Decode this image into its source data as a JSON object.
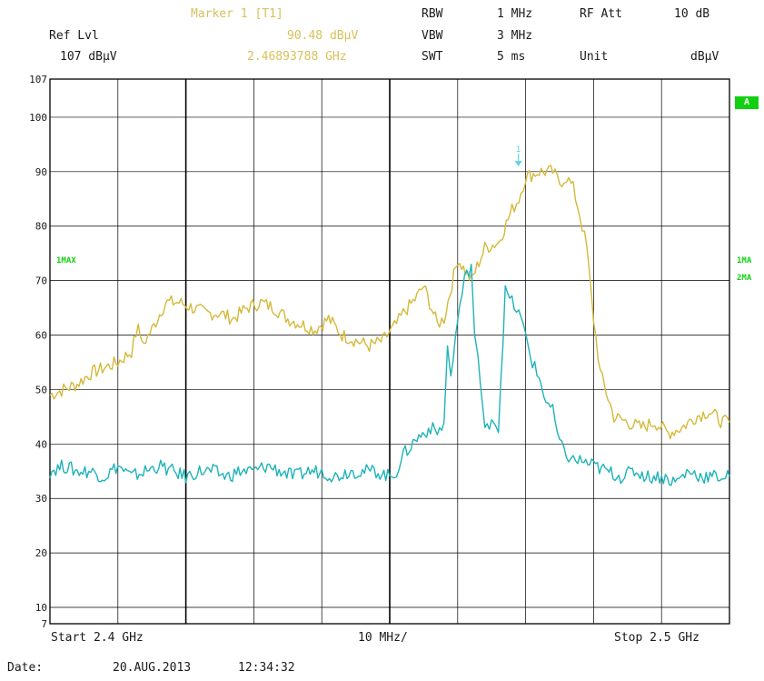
{
  "header": {
    "marker_title": "Marker 1 [T1]",
    "marker_level": "90.48 dBμV",
    "marker_freq": "2.46893788 GHz",
    "ref_label": "Ref Lvl",
    "ref_value": "107 dBμV",
    "rbw_label": "RBW",
    "rbw_value": "1 MHz",
    "vbw_label": "VBW",
    "vbw_value": "3 MHz",
    "swt_label": "SWT",
    "swt_value": "5 ms",
    "rfatt_label": "RF Att",
    "rfatt_value": "10 dB",
    "unit_label": "Unit",
    "unit_value": "dBμV"
  },
  "footer": {
    "start": "Start 2.4 GHz",
    "div": "10 MHz/",
    "stop": "Stop 2.5 GHz",
    "date_label": "Date:",
    "date_value": "20.AUG.2013",
    "time_value": "12:34:32"
  },
  "badges": {
    "trace_a": "A",
    "left_1max": "1MAX",
    "right_1ma": "1MA",
    "right_2ma": "2MA"
  },
  "colors": {
    "trace1": "#d4b93a",
    "trace2": "#1eb3b8",
    "grid": "#000000",
    "badge": "#11d011",
    "marker": "#5fd3e8"
  },
  "chart_data": {
    "type": "line",
    "xlabel": "",
    "ylabel": "",
    "xlim": [
      2.4,
      2.5
    ],
    "ylim": [
      7,
      107
    ],
    "yticks": [
      107,
      100,
      90,
      80,
      70,
      60,
      50,
      40,
      30,
      20,
      10,
      7
    ],
    "x_divisions": 10,
    "grid": true,
    "marker": {
      "label": "1",
      "x": 2.46893788,
      "y": 90.48
    },
    "series": [
      {
        "name": "1MAX",
        "x": [
          2.4,
          2.402,
          2.404,
          2.406,
          2.408,
          2.41,
          2.412,
          2.413,
          2.4135,
          2.415,
          2.417,
          2.419,
          2.421,
          2.423,
          2.425,
          2.427,
          2.429,
          2.431,
          2.433,
          2.435,
          2.437,
          2.439,
          2.441,
          2.443,
          2.445,
          2.447,
          2.449,
          2.451,
          2.452,
          2.454,
          2.455,
          2.457,
          2.458,
          2.46,
          2.462,
          2.464,
          2.466,
          2.468,
          2.469,
          2.47,
          2.472,
          2.474,
          2.475,
          2.476,
          2.477,
          2.478,
          2.479,
          2.48,
          2.481,
          2.483,
          2.485,
          2.487,
          2.489,
          2.491,
          2.493,
          2.495,
          2.497,
          2.499,
          2.5
        ],
        "y": [
          49,
          50,
          51,
          53,
          54,
          55,
          57,
          62,
          58,
          61,
          66,
          66,
          65,
          64,
          64,
          63,
          65,
          66,
          65,
          63,
          62,
          61,
          63,
          60,
          59,
          58,
          59,
          62,
          64,
          67,
          69,
          62,
          63,
          74,
          70,
          76,
          77,
          83,
          85,
          89,
          90,
          90,
          88,
          89,
          87,
          82,
          76,
          63,
          53,
          45,
          44,
          43,
          44,
          42,
          43,
          45,
          46,
          44,
          44
        ]
      },
      {
        "name": "2MA",
        "x": [
          2.4,
          2.402,
          2.404,
          2.406,
          2.408,
          2.41,
          2.412,
          2.414,
          2.416,
          2.418,
          2.42,
          2.422,
          2.424,
          2.426,
          2.428,
          2.43,
          2.432,
          2.434,
          2.436,
          2.438,
          2.44,
          2.442,
          2.444,
          2.446,
          2.448,
          2.45,
          2.451,
          2.452,
          2.454,
          2.456,
          2.457,
          2.458,
          2.4585,
          2.459,
          2.46,
          2.461,
          2.462,
          2.4625,
          2.463,
          2.464,
          2.465,
          2.466,
          2.467,
          2.468,
          2.469,
          2.47,
          2.471,
          2.472,
          2.473,
          2.474,
          2.475,
          2.476,
          2.477,
          2.478,
          2.48,
          2.482,
          2.484,
          2.486,
          2.488,
          2.49,
          2.492,
          2.494,
          2.496,
          2.498,
          2.5
        ],
        "y": [
          35,
          36,
          35,
          35,
          34,
          36,
          34,
          35,
          36,
          35,
          34,
          35,
          35,
          34,
          35,
          35,
          36,
          35,
          34,
          35,
          35,
          34,
          35,
          35,
          35,
          34,
          35,
          38,
          41,
          43,
          42,
          44,
          58,
          52,
          63,
          70,
          73,
          60,
          56,
          42,
          45,
          43,
          68,
          66,
          64,
          60,
          55,
          52,
          48,
          46,
          40,
          38,
          37,
          37,
          36,
          35,
          34,
          35,
          34,
          34,
          33,
          35,
          34,
          34,
          34
        ]
      }
    ]
  }
}
